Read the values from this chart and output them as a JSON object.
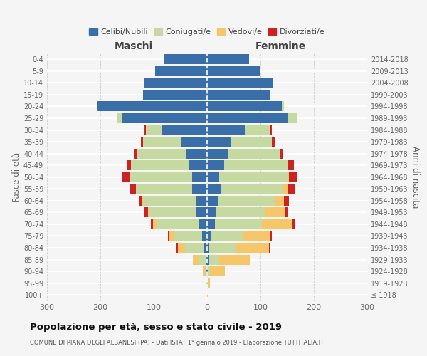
{
  "age_groups": [
    "100+",
    "95-99",
    "90-94",
    "85-89",
    "80-84",
    "75-79",
    "70-74",
    "65-69",
    "60-64",
    "55-59",
    "50-54",
    "45-49",
    "40-44",
    "35-39",
    "30-34",
    "25-29",
    "20-24",
    "15-19",
    "10-14",
    "5-9",
    "0-4"
  ],
  "birth_years": [
    "≤ 1918",
    "1919-1923",
    "1924-1928",
    "1929-1933",
    "1934-1938",
    "1939-1943",
    "1944-1948",
    "1949-1953",
    "1954-1958",
    "1959-1963",
    "1964-1968",
    "1969-1973",
    "1974-1978",
    "1979-1983",
    "1984-1988",
    "1989-1993",
    "1994-1998",
    "1999-2003",
    "2004-2008",
    "2009-2013",
    "2014-2018"
  ],
  "colors": {
    "celibi": "#3a6ea8",
    "coniugati": "#c5d9a0",
    "vedovi": "#f5c76a",
    "divorziati": "#cc2222"
  },
  "maschi": {
    "celibi": [
      0,
      0,
      1,
      3,
      6,
      10,
      16,
      20,
      22,
      28,
      28,
      35,
      40,
      50,
      85,
      160,
      205,
      120,
      118,
      98,
      82
    ],
    "coniugati": [
      0,
      0,
      2,
      12,
      35,
      52,
      78,
      88,
      98,
      105,
      118,
      108,
      92,
      70,
      30,
      8,
      2,
      0,
      0,
      0,
      0
    ],
    "vedovi": [
      0,
      1,
      5,
      12,
      14,
      10,
      7,
      3,
      2,
      1,
      0,
      0,
      0,
      0,
      0,
      0,
      0,
      0,
      0,
      0,
      0
    ],
    "divorziati": [
      0,
      0,
      0,
      0,
      2,
      2,
      5,
      6,
      6,
      10,
      14,
      8,
      5,
      4,
      2,
      1,
      0,
      0,
      0,
      0,
      0
    ]
  },
  "femmine": {
    "celibi": [
      0,
      0,
      1,
      2,
      4,
      6,
      14,
      16,
      20,
      25,
      22,
      32,
      38,
      45,
      70,
      150,
      140,
      118,
      122,
      98,
      78
    ],
    "coniugati": [
      0,
      1,
      4,
      20,
      50,
      60,
      88,
      92,
      108,
      118,
      128,
      118,
      98,
      76,
      48,
      18,
      4,
      0,
      0,
      0,
      0
    ],
    "vedovi": [
      1,
      4,
      28,
      58,
      62,
      52,
      58,
      38,
      16,
      8,
      3,
      2,
      1,
      0,
      0,
      0,
      0,
      0,
      0,
      0,
      0
    ],
    "divorziati": [
      0,
      0,
      0,
      0,
      2,
      3,
      4,
      5,
      9,
      14,
      16,
      11,
      6,
      5,
      3,
      1,
      0,
      0,
      0,
      0,
      0
    ]
  },
  "xlim": 300,
  "xlabel_ticks": [
    -300,
    -200,
    -100,
    0,
    100,
    200,
    300
  ],
  "title": "Popolazione per età, sesso e stato civile - 2019",
  "subtitle": "COMUNE DI PIANA DEGLI ALBANESI (PA) - Dati ISTAT 1° gennaio 2019 - Elaborazione TUTTITALIA.IT",
  "ylabel_left": "Fasce di età",
  "ylabel_right": "Anni di nascita",
  "legend_labels": [
    "Celibi/Nubili",
    "Coniugati/e",
    "Vedovi/e",
    "Divorziati/e"
  ],
  "maschi_label": "Maschi",
  "femmine_label": "Femmine",
  "bg_color": "#f5f5f5",
  "bar_height": 0.85,
  "grid_color": "#cccccc"
}
